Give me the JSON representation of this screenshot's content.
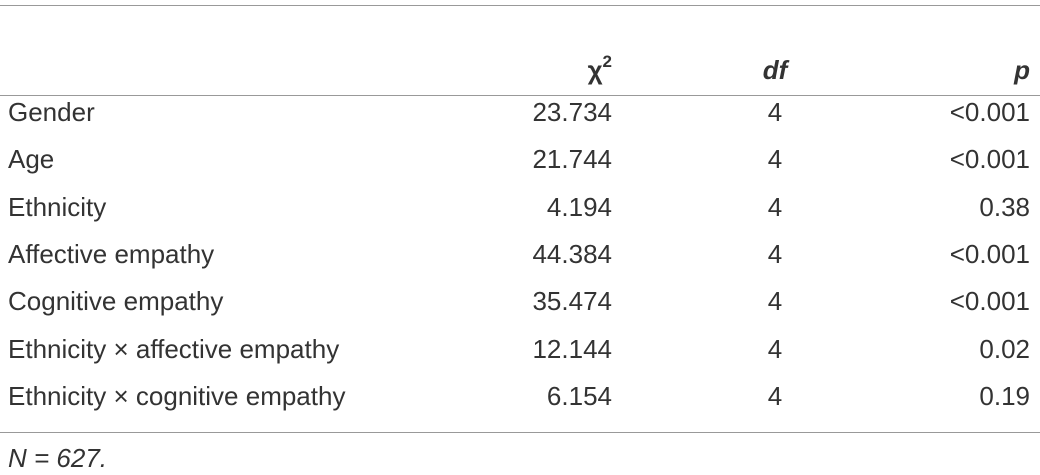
{
  "table": {
    "header": [
      {
        "text": "χ",
        "sup": "2"
      },
      "df",
      "p"
    ],
    "rows": [
      [
        "Gender",
        "23.734",
        "4",
        "<0.001"
      ],
      [
        "Age",
        "21.744",
        "4",
        "<0.001"
      ],
      [
        "Ethnicity",
        "4.194",
        "4",
        "0.38"
      ],
      [
        "Affective empathy",
        "44.384",
        "4",
        "<0.001"
      ],
      [
        "Cognitive empathy",
        "35.474",
        "4",
        "<0.001"
      ],
      [
        "Ethnicity × affective empathy",
        "12.144",
        "4",
        "0.02"
      ],
      [
        "Ethnicity × cognitive empathy",
        "6.154",
        "4",
        "0.19"
      ]
    ],
    "note": "N = 627."
  }
}
